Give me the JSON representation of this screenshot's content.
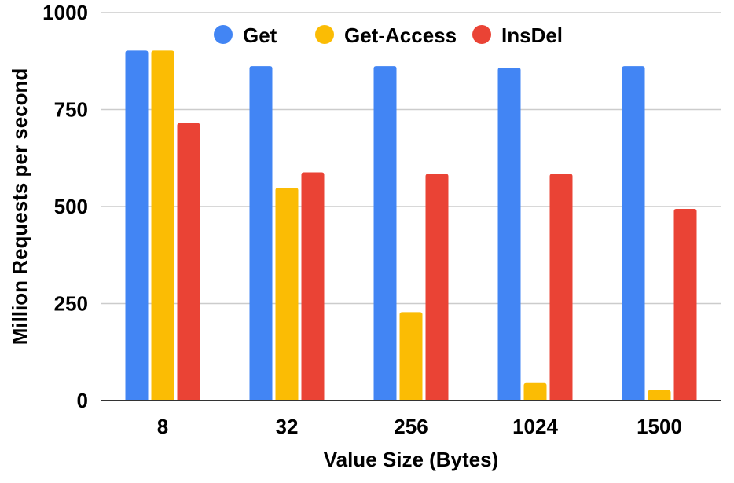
{
  "chart_data": {
    "type": "bar",
    "title": "",
    "xlabel": "Value Size (Bytes)",
    "ylabel": "Million Requests per second",
    "categories": [
      "8",
      "32",
      "256",
      "1024",
      "1500"
    ],
    "ylim": [
      0,
      1000
    ],
    "yticks": [
      "0",
      "250",
      "500",
      "750",
      "1000"
    ],
    "grid": true,
    "legend_position": "top",
    "series": [
      {
        "name": "Get",
        "color": "#4285F4",
        "values": [
          902,
          862,
          862,
          858,
          862
        ]
      },
      {
        "name": "Get-Access",
        "color": "#FBBC04",
        "values": [
          902,
          548,
          228,
          45,
          27
        ]
      },
      {
        "name": "InsDel",
        "color": "#EA4335",
        "values": [
          715,
          588,
          584,
          584,
          494
        ]
      }
    ]
  }
}
